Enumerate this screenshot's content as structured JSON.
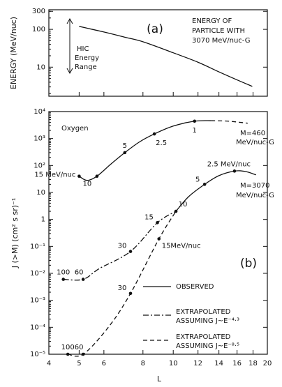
{
  "chart_data": [
    {
      "type": "line",
      "ylabel": "ENERGY (MeV/nuc)",
      "xscale": "log",
      "yscale": "log",
      "color": "#111111",
      "xlim": [
        4,
        20
      ],
      "ylim": [
        1.7,
        330
      ],
      "yticks": [
        300,
        100,
        10
      ],
      "series": [
        {
          "style": "solid",
          "x": [
            5,
            6,
            7,
            8,
            10,
            12,
            14,
            16,
            17.9
          ],
          "values": [
            120,
            85,
            62,
            47,
            24,
            13.5,
            7.5,
            4.6,
            3.1
          ]
        }
      ],
      "annotations": {
        "panel": "(a)",
        "note": [
          "ENERGY OF",
          "PARTICLE WITH",
          "3070 MeV/nuc-G"
        ],
        "range": [
          "HIC",
          "Energy",
          "Range"
        ]
      }
    },
    {
      "type": "line",
      "ylabel": "J (>M) (cm² s sr)⁻¹",
      "xlabel": "L",
      "xscale": "log",
      "yscale": "log",
      "color": "#111111",
      "xlim": [
        4,
        20
      ],
      "xticks": [
        4,
        5,
        6,
        8,
        10,
        12,
        14,
        16,
        18,
        20
      ],
      "ylim": [
        1e-05,
        10000
      ],
      "yticks": [
        {
          "value": 10000,
          "label": "10⁴"
        },
        {
          "value": 1000,
          "label": "10³"
        },
        {
          "value": 100,
          "label": "10²"
        },
        10,
        1,
        {
          "value": 0.1,
          "label": "10⁻¹"
        },
        {
          "value": 0.01,
          "label": "10⁻²"
        },
        {
          "value": 0.001,
          "label": "10⁻³"
        },
        {
          "value": 0.0001,
          "label": "10⁻⁴"
        },
        {
          "value": 1e-05,
          "label": "10⁻⁵"
        }
      ],
      "series": [
        {
          "style": "solid",
          "x": [
            5,
            5.3,
            5.7,
            6.3,
            7,
            7.8,
            8.7,
            10,
            11.7,
            13.2
          ],
          "values": [
            40,
            28,
            40,
            110,
            300,
            750,
            1480,
            2900,
            4400,
            4600
          ],
          "points": {
            "x": [
              5,
              5.7,
              7,
              8.7,
              11.7
            ],
            "values": [
              40,
              40,
              300,
              1480,
              4400
            ],
            "labels": [
              "15 MeV/nuc",
              "10",
              "5",
              "2.5",
              "1"
            ]
          }
        },
        {
          "style": "dashed",
          "x": [
            13.2,
            15,
            17.3
          ],
          "values": [
            4600,
            4400,
            3700
          ]
        },
        {
          "style": "solid",
          "x": [
            10.2,
            11.2,
            12.6,
            14,
            15.7,
            17,
            18.4
          ],
          "values": [
            2,
            7,
            20,
            42,
            62,
            60,
            45
          ],
          "points": {
            "x": [
              10.2,
              12.6,
              15.7
            ],
            "values": [
              2,
              20,
              62
            ],
            "labels": [
              "10",
              "5",
              "2.5 MeV/nuc"
            ]
          }
        },
        {
          "style": "dashdot",
          "x": [
            4.45,
            5.15,
            5.8,
            7.3,
            8.9,
            10.2
          ],
          "values": [
            0.006,
            0.006,
            0.015,
            0.065,
            0.76,
            2
          ],
          "points": {
            "x": [
              4.45,
              5.15,
              7.3,
              8.9
            ],
            "values": [
              0.006,
              0.006,
              0.065,
              0.76
            ],
            "labels": [
              "100",
              "60",
              "30",
              "15"
            ]
          }
        },
        {
          "style": "dashed",
          "x": [
            4.6,
            5.15,
            6.2,
            7.3,
            9,
            10.2
          ],
          "values": [
            1e-05,
            1e-05,
            0.0001,
            0.0018,
            0.19,
            2
          ],
          "points": {
            "x": [
              4.6,
              5.15,
              7.3,
              9
            ],
            "values": [
              1e-05,
              1e-05,
              0.0018,
              0.19
            ],
            "labels": [
              "100",
              "60",
              "30",
              "15MeV/nuc"
            ]
          }
        }
      ],
      "legend": [
        {
          "style": "solid",
          "label": [
            "OBSERVED"
          ]
        },
        {
          "style": "dashdot",
          "label": [
            "EXTRAPOLATED",
            "ASSUMING J~E⁻⁴·³"
          ]
        },
        {
          "style": "dashed",
          "label": [
            "EXTRAPOLATED",
            "ASSUMING J~E⁻⁸·⁵"
          ]
        }
      ],
      "annotations": {
        "oxygen": "Oxygen",
        "m460": [
          "M=460",
          "MeV/nuc-G"
        ],
        "m3070": [
          "M=3070",
          "MeV/nuc-G"
        ],
        "panel": "(b)"
      }
    }
  ]
}
